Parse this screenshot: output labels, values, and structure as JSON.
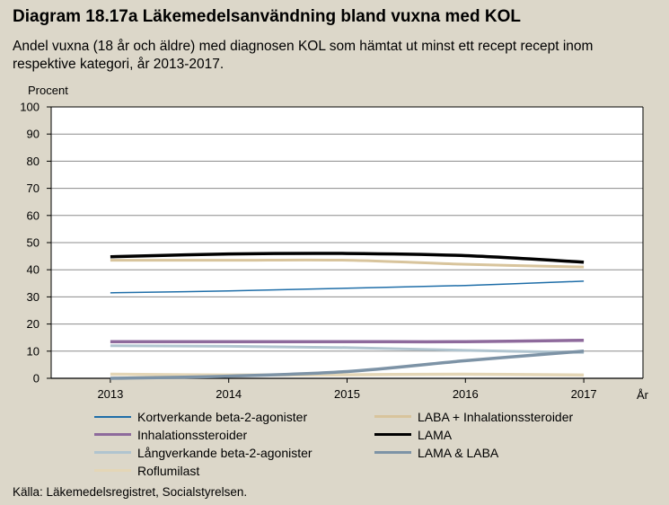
{
  "title": "Diagram 18.17a Läkemedelsanvändning bland vuxna med KOL",
  "subtitle": "Andel vuxna (18 år och äldre) med diagnosen KOL som hämtat ut minst ett recept recept inom respektive kategori, år 2013-2017.",
  "source": "Källa: Läkemedelsregistret, Socialstyrelsen.",
  "chart_data": {
    "type": "line",
    "ylabel": "Procent",
    "xlabel": "År",
    "ylim": [
      0,
      100
    ],
    "yticks": [
      0,
      10,
      20,
      30,
      40,
      50,
      60,
      70,
      80,
      90,
      100
    ],
    "x": [
      "2013",
      "2014",
      "2015",
      "2016",
      "2017"
    ],
    "grid": true,
    "legend_position": "bottom",
    "series": [
      {
        "name": "Kortverkande beta-2-agonister",
        "color": "#1f6ea8",
        "width": 1.5,
        "values": [
          31.5,
          32.2,
          33.2,
          34.2,
          35.8
        ]
      },
      {
        "name": "LABA + Inhalationssteroider",
        "color": "#d8c49c",
        "width": 3,
        "values": [
          43.5,
          43.5,
          43.5,
          42.0,
          41.0
        ]
      },
      {
        "name": "Inhalationssteroider",
        "color": "#8e6a9c",
        "width": 3.5,
        "values": [
          13.5,
          13.5,
          13.5,
          13.5,
          14.0
        ]
      },
      {
        "name": "LAMA",
        "color": "#000000",
        "width": 3.5,
        "values": [
          44.8,
          45.8,
          46.0,
          45.2,
          42.8
        ]
      },
      {
        "name": "Långverkande beta-2-agonister",
        "color": "#b0c4cf",
        "width": 3,
        "values": [
          12.0,
          11.8,
          11.3,
          10.3,
          9.5
        ]
      },
      {
        "name": "LAMA & LABA",
        "color": "#7d93a6",
        "width": 3.5,
        "values": [
          0.0,
          0.8,
          2.5,
          6.5,
          10.0
        ]
      },
      {
        "name": "Roflumilast",
        "color": "#e4d6b6",
        "width": 3.5,
        "values": [
          1.5,
          1.2,
          1.3,
          1.5,
          1.2
        ]
      }
    ]
  }
}
